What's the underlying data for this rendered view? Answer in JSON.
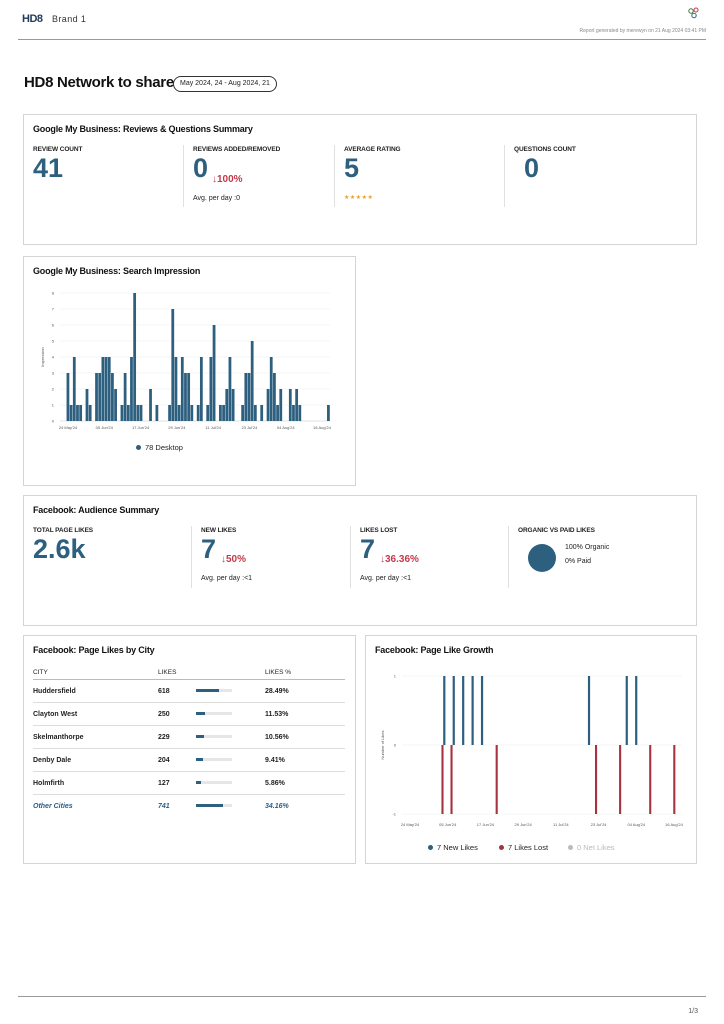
{
  "header": {
    "logo": "HD8",
    "brand": "Brand 1",
    "report_meta": "Report generated by merewyn on 21 Aug 2024 03:41 PM"
  },
  "page": {
    "title": "HD8 Network to share",
    "date_range": "May 2024, 24 - Aug 2024, 21"
  },
  "gmb_reviews": {
    "title": "Google My Business: Reviews & Questions Summary",
    "review_count_label": "REVIEW COUNT",
    "review_count": "41",
    "reviews_added_label": "REVIEWS ADDED/REMOVED",
    "reviews_added": "0",
    "reviews_change": "↓100%",
    "reviews_avg": "Avg. per day :0",
    "avg_rating_label": "AVERAGE RATING",
    "avg_rating": "5",
    "stars": "★★★★★",
    "questions_label": "QUESTIONS COUNT",
    "questions": "0"
  },
  "gmb_search": {
    "title": "Google My Business: Search Impression",
    "y_label": "Impression",
    "legend": "78 Desktop",
    "color": "#2d5f7f"
  },
  "fb_audience": {
    "title": "Facebook: Audience Summary",
    "total_label": "TOTAL PAGE LIKES",
    "total": "2.6k",
    "new_label": "NEW LIKES",
    "new": "7",
    "new_change": "↓50%",
    "new_avg": "Avg. per day :<1",
    "lost_label": "LIKES LOST",
    "lost": "7",
    "lost_change": "↓36.36%",
    "lost_avg": "Avg. per day :<1",
    "organic_label": "ORGANIC VS PAID LIKES",
    "organic_text": "100% Organic",
    "paid_text": "0% Paid",
    "organic_pct": 100
  },
  "fb_city": {
    "title": "Facebook: Page Likes by City",
    "headers": [
      "CITY",
      "LIKES",
      "LIKES %"
    ],
    "rows": [
      {
        "city": "Huddersfield",
        "likes": "618",
        "pct": "28.49%",
        "frac": 0.2849
      },
      {
        "city": "Clayton West",
        "likes": "250",
        "pct": "11.53%",
        "frac": 0.1153
      },
      {
        "city": "Skelmanthorpe",
        "likes": "229",
        "pct": "10.56%",
        "frac": 0.1056
      },
      {
        "city": "Denby Dale",
        "likes": "204",
        "pct": "9.41%",
        "frac": 0.0941
      },
      {
        "city": "Holmfirth",
        "likes": "127",
        "pct": "5.86%",
        "frac": 0.0586
      },
      {
        "city": "Other Cities",
        "likes": "741",
        "pct": "34.16%",
        "frac": 0.3416
      }
    ]
  },
  "fb_growth": {
    "title": "Facebook: Page Like Growth",
    "y_label": "Number of Likes",
    "legend_new": "7 New Likes",
    "legend_lost": "7 Likes Lost",
    "legend_net": "0 Net Likes",
    "color_new": "#2d5f7f",
    "color_lost": "#a8323e",
    "color_net": "#bbbbbb"
  },
  "footer": {
    "page": "1/3"
  },
  "chart_data": [
    {
      "type": "bar",
      "title": "Google My Business: Search Impression",
      "ylabel": "Impression",
      "ylim": [
        0,
        8
      ],
      "yticks": [
        0,
        1,
        2,
        3,
        4,
        5,
        6,
        7,
        8
      ],
      "xticks": [
        "24 May'24",
        "05 Jun'24",
        "17 Jun'24",
        "29 Jun'24",
        "11 Jul'24",
        "23 Jul'24",
        "04 Aug'24",
        "16 Aug'24"
      ],
      "series": [
        {
          "name": "78 Desktop",
          "values": [
            0,
            0,
            3,
            1,
            4,
            1,
            1,
            0,
            2,
            1,
            0,
            3,
            3,
            4,
            4,
            4,
            3,
            2,
            0,
            1,
            3,
            1,
            4,
            8,
            1,
            1,
            0,
            0,
            2,
            0,
            1,
            0,
            0,
            0,
            1,
            7,
            4,
            1,
            4,
            3,
            3,
            1,
            0,
            1,
            4,
            0,
            1,
            4,
            6,
            0,
            1,
            1,
            2,
            4,
            2,
            0,
            0,
            1,
            3,
            3,
            5,
            1,
            0,
            1,
            0,
            2,
            4,
            3,
            1,
            2,
            0,
            0,
            2,
            1,
            2,
            1,
            0,
            0,
            0,
            0,
            0,
            0,
            0,
            0,
            1
          ]
        }
      ]
    },
    {
      "type": "bar",
      "title": "Facebook: Page Like Growth",
      "ylabel": "Number of Likes",
      "ylim": [
        -1,
        1
      ],
      "yticks": [
        -1,
        0,
        1
      ],
      "xticks": [
        "24 May'24",
        "05 Jun'24",
        "17 Jun'24",
        "29 Jun'24",
        "11 Jul'24",
        "23 Jul'24",
        "04 Aug'24",
        "16 Aug'24"
      ],
      "series": [
        {
          "name": "7 New Likes",
          "values": [
            0,
            0,
            0,
            0,
            0,
            0,
            0,
            0,
            0,
            0,
            0,
            0,
            0,
            1,
            0,
            0,
            1,
            0,
            0,
            1,
            0,
            0,
            1,
            0,
            0,
            1,
            0,
            0,
            0,
            0,
            0,
            0,
            0,
            0,
            0,
            0,
            0,
            0,
            0,
            0,
            0,
            0,
            0,
            0,
            0,
            0,
            0,
            0,
            0,
            0,
            0,
            0,
            0,
            0,
            0,
            0,
            0,
            0,
            0,
            1,
            0,
            0,
            0,
            0,
            0,
            0,
            0,
            0,
            0,
            0,
            0,
            1,
            0,
            0,
            1,
            0,
            0,
            0,
            0,
            0,
            0,
            0,
            0,
            0,
            0,
            0,
            0,
            0,
            0
          ]
        },
        {
          "name": "7 Likes Lost",
          "values": [
            0,
            0,
            0,
            0,
            0,
            0,
            0,
            0,
            0,
            0,
            0,
            0,
            0,
            -1,
            0,
            0,
            -1,
            0,
            0,
            0,
            0,
            0,
            0,
            0,
            0,
            0,
            0,
            0,
            0,
            0,
            0,
            -1,
            0,
            0,
            0,
            0,
            0,
            0,
            0,
            0,
            0,
            0,
            0,
            0,
            0,
            0,
            0,
            0,
            0,
            0,
            0,
            0,
            0,
            0,
            0,
            0,
            0,
            0,
            0,
            0,
            0,
            0,
            0,
            0,
            -1,
            0,
            0,
            0,
            0,
            0,
            0,
            0,
            -1,
            0,
            0,
            0,
            0,
            0,
            0,
            0,
            0,
            0,
            -1,
            0,
            0,
            0,
            0,
            0,
            0,
            0,
            -1,
            0,
            0
          ]
        },
        {
          "name": "0 Net Likes",
          "values": []
        }
      ]
    }
  ]
}
